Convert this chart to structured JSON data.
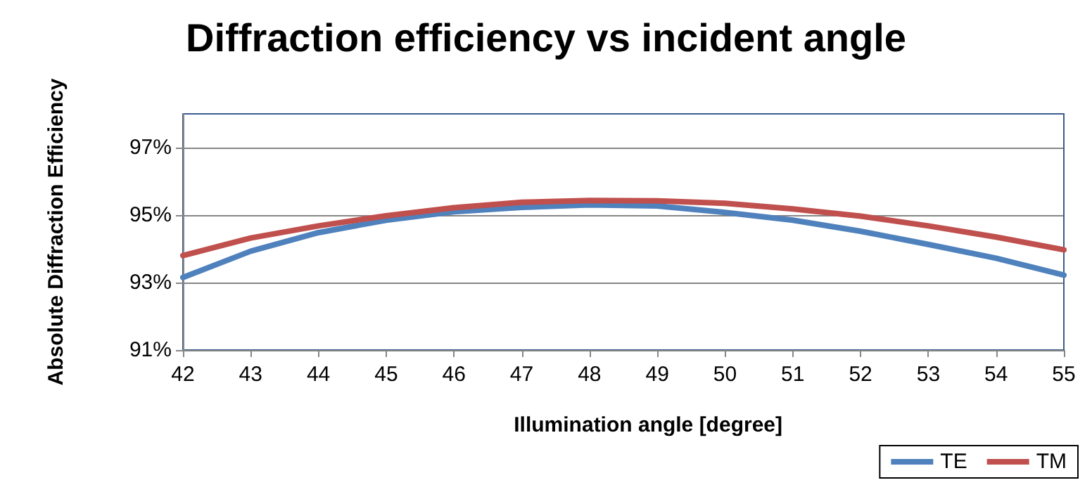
{
  "chart_data": {
    "type": "line",
    "title": "Diffraction efficiency vs incident angle",
    "xlabel": "Illumination angle [degree]",
    "ylabel": "Absolute Diffraction Efficiency",
    "x": [
      42,
      43,
      44,
      45,
      46,
      47,
      48,
      49,
      50,
      51,
      52,
      53,
      54,
      55
    ],
    "series": [
      {
        "name": "TE",
        "color": "#4f81bd",
        "values": [
          93.15,
          93.93,
          94.48,
          94.85,
          95.1,
          95.23,
          95.3,
          95.27,
          95.08,
          94.85,
          94.52,
          94.13,
          93.72,
          93.22
        ]
      },
      {
        "name": "TM",
        "color": "#c0504d",
        "values": [
          93.8,
          94.32,
          94.68,
          94.98,
          95.22,
          95.38,
          95.43,
          95.42,
          95.35,
          95.18,
          94.97,
          94.68,
          94.35,
          93.97
        ]
      }
    ],
    "xlim": [
      42,
      55
    ],
    "xticks": [
      42,
      43,
      44,
      45,
      46,
      47,
      48,
      49,
      50,
      51,
      52,
      53,
      54,
      55
    ],
    "ylim": [
      91,
      98
    ],
    "yticks": [
      {
        "value": 91,
        "label": "91%"
      },
      {
        "value": 93,
        "label": "93%"
      },
      {
        "value": 95,
        "label": "95%"
      },
      {
        "value": 97,
        "label": "97%"
      }
    ],
    "grid": "y",
    "legend": "bottom right",
    "marker": "none",
    "line_style": "solid"
  }
}
